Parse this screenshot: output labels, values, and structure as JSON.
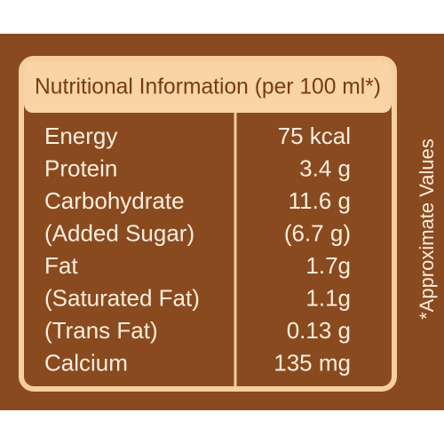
{
  "header": {
    "title": "Nutritional Information (per 100 ml*)"
  },
  "table": {
    "rows": [
      [
        "Energy",
        "75 kcal"
      ],
      [
        "Protein",
        "3.4 g"
      ],
      [
        "Carbohydrate",
        "11.6 g"
      ],
      [
        "(Added Sugar)",
        "(6.7 g)"
      ],
      [
        "Fat",
        "1.7g"
      ],
      [
        "(Saturated Fat)",
        "1.1g"
      ],
      [
        "(Trans Fat)",
        "0.13 g"
      ],
      [
        "Calcium",
        "135 mg"
      ]
    ]
  },
  "note": "*Approximate Values"
}
